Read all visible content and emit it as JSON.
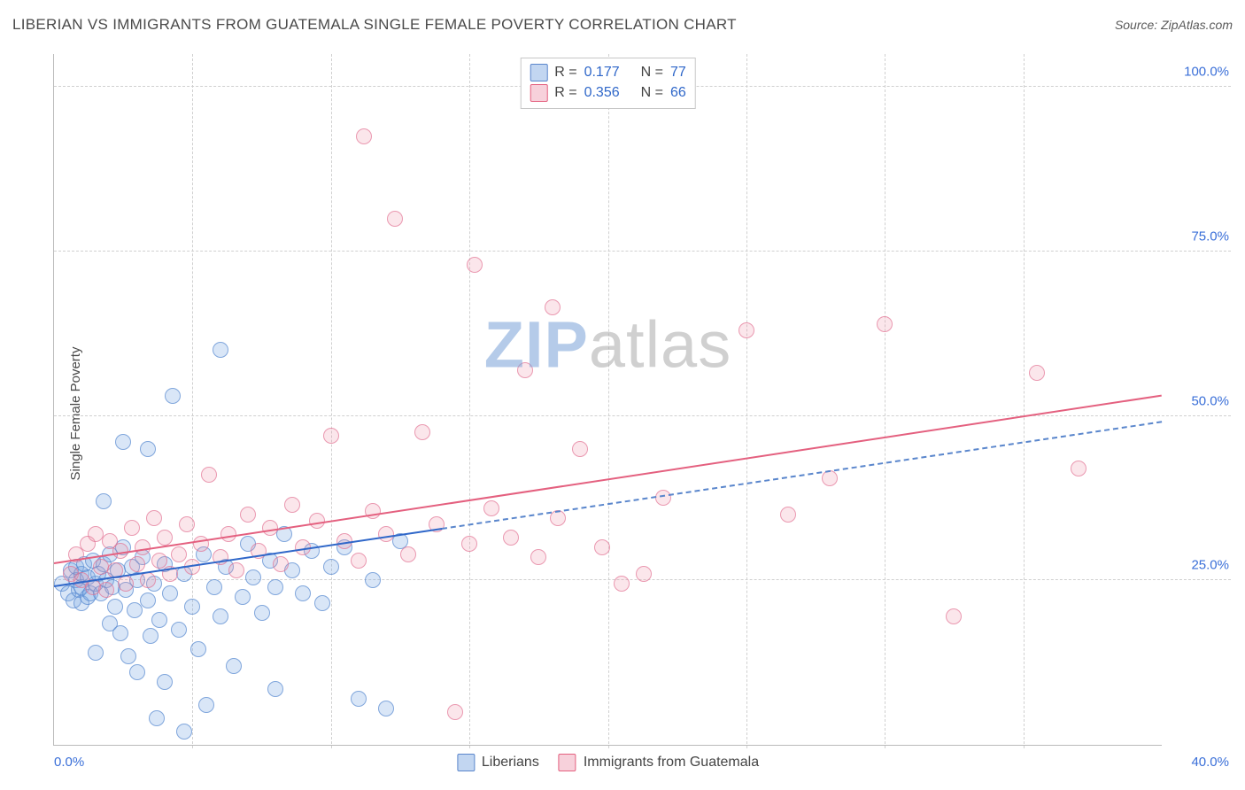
{
  "title": "LIBERIAN VS IMMIGRANTS FROM GUATEMALA SINGLE FEMALE POVERTY CORRELATION CHART",
  "source_label": "Source: ZipAtlas.com",
  "ylabel": "Single Female Poverty",
  "watermark": {
    "bold": "ZIP",
    "rest": "atlas"
  },
  "chart": {
    "type": "scatter",
    "background_color": "#ffffff",
    "grid_color": "#d0d0d0",
    "axis_color": "#bbbbbb",
    "tick_color": "#3a6fd8",
    "tick_fontsize": 15,
    "label_fontsize": 15,
    "xlim": [
      0,
      40
    ],
    "ylim": [
      0,
      105
    ],
    "xticks": [
      0,
      5,
      10,
      15,
      20,
      25,
      30,
      35,
      40
    ],
    "xtick_labels": [
      "0.0%",
      "",
      "",
      "",
      "",
      "",
      "",
      "",
      "40.0%"
    ],
    "yticks": [
      25,
      50,
      75,
      100
    ],
    "ytick_labels": [
      "25.0%",
      "50.0%",
      "75.0%",
      "100.0%"
    ],
    "marker_radius": 9,
    "series": [
      {
        "key": "liberians",
        "label": "Liberians",
        "fill_color": "rgba(120,165,225,0.28)",
        "stroke_color": "rgba(80,130,205,0.65)",
        "reg_color": "#2f67c9",
        "reg_dash_after_x": 14,
        "r": "0.177",
        "n": "77",
        "regression": {
          "y_at_x0": 24.0,
          "y_at_x40": 49.0
        },
        "points": [
          [
            0.3,
            24.5
          ],
          [
            0.5,
            23.0
          ],
          [
            0.6,
            26.5
          ],
          [
            0.7,
            22.0
          ],
          [
            0.8,
            25.0
          ],
          [
            0.8,
            27.0
          ],
          [
            0.9,
            23.5
          ],
          [
            1.0,
            24.0
          ],
          [
            1.0,
            26.0
          ],
          [
            1.0,
            21.5
          ],
          [
            1.1,
            27.5
          ],
          [
            1.2,
            22.5
          ],
          [
            1.2,
            25.5
          ],
          [
            1.3,
            23.0
          ],
          [
            1.4,
            28.0
          ],
          [
            1.5,
            24.5
          ],
          [
            1.5,
            14.0
          ],
          [
            1.6,
            26.0
          ],
          [
            1.7,
            23.0
          ],
          [
            1.8,
            27.5
          ],
          [
            1.8,
            37.0
          ],
          [
            1.9,
            25.0
          ],
          [
            2.0,
            18.5
          ],
          [
            2.0,
            29.0
          ],
          [
            2.1,
            24.0
          ],
          [
            2.2,
            21.0
          ],
          [
            2.3,
            26.5
          ],
          [
            2.4,
            17.0
          ],
          [
            2.5,
            30.0
          ],
          [
            2.5,
            46.0
          ],
          [
            2.6,
            23.5
          ],
          [
            2.7,
            13.5
          ],
          [
            2.8,
            27.0
          ],
          [
            2.9,
            20.5
          ],
          [
            3.0,
            25.0
          ],
          [
            3.0,
            11.0
          ],
          [
            3.2,
            28.5
          ],
          [
            3.4,
            22.0
          ],
          [
            3.4,
            45.0
          ],
          [
            3.5,
            16.5
          ],
          [
            3.6,
            24.5
          ],
          [
            3.7,
            4.0
          ],
          [
            3.8,
            19.0
          ],
          [
            4.0,
            27.5
          ],
          [
            4.0,
            9.5
          ],
          [
            4.2,
            23.0
          ],
          [
            4.3,
            53.0
          ],
          [
            4.5,
            17.5
          ],
          [
            4.7,
            26.0
          ],
          [
            4.7,
            2.0
          ],
          [
            5.0,
            21.0
          ],
          [
            5.2,
            14.5
          ],
          [
            5.4,
            29.0
          ],
          [
            5.5,
            6.0
          ],
          [
            5.8,
            24.0
          ],
          [
            6.0,
            19.5
          ],
          [
            6.0,
            60.0
          ],
          [
            6.2,
            27.0
          ],
          [
            6.5,
            12.0
          ],
          [
            6.8,
            22.5
          ],
          [
            7.0,
            30.5
          ],
          [
            7.2,
            25.5
          ],
          [
            7.5,
            20.0
          ],
          [
            7.8,
            28.0
          ],
          [
            8.0,
            24.0
          ],
          [
            8.0,
            8.5
          ],
          [
            8.3,
            32.0
          ],
          [
            8.6,
            26.5
          ],
          [
            9.0,
            23.0
          ],
          [
            9.3,
            29.5
          ],
          [
            9.7,
            21.5
          ],
          [
            10.0,
            27.0
          ],
          [
            10.5,
            30.0
          ],
          [
            11.0,
            7.0
          ],
          [
            11.5,
            25.0
          ],
          [
            12.0,
            5.5
          ],
          [
            12.5,
            31.0
          ]
        ]
      },
      {
        "key": "guatemala",
        "label": "Immigrants from Guatemala",
        "fill_color": "rgba(235,140,165,0.22)",
        "stroke_color": "rgba(225,110,145,0.65)",
        "reg_color": "#e4607f",
        "reg_dash_after_x": null,
        "r": "0.356",
        "n": "66",
        "regression": {
          "y_at_x0": 27.5,
          "y_at_x40": 53.0
        },
        "points": [
          [
            0.6,
            26.0
          ],
          [
            0.8,
            29.0
          ],
          [
            1.0,
            25.0
          ],
          [
            1.2,
            30.5
          ],
          [
            1.4,
            24.0
          ],
          [
            1.5,
            32.0
          ],
          [
            1.7,
            27.0
          ],
          [
            1.9,
            23.5
          ],
          [
            2.0,
            31.0
          ],
          [
            2.2,
            26.5
          ],
          [
            2.4,
            29.5
          ],
          [
            2.6,
            24.5
          ],
          [
            2.8,
            33.0
          ],
          [
            3.0,
            27.5
          ],
          [
            3.2,
            30.0
          ],
          [
            3.4,
            25.0
          ],
          [
            3.6,
            34.5
          ],
          [
            3.8,
            28.0
          ],
          [
            4.0,
            31.5
          ],
          [
            4.2,
            26.0
          ],
          [
            4.5,
            29.0
          ],
          [
            4.8,
            33.5
          ],
          [
            5.0,
            27.0
          ],
          [
            5.3,
            30.5
          ],
          [
            5.6,
            41.0
          ],
          [
            6.0,
            28.5
          ],
          [
            6.3,
            32.0
          ],
          [
            6.6,
            26.5
          ],
          [
            7.0,
            35.0
          ],
          [
            7.4,
            29.5
          ],
          [
            7.8,
            33.0
          ],
          [
            8.2,
            27.5
          ],
          [
            8.6,
            36.5
          ],
          [
            9.0,
            30.0
          ],
          [
            9.5,
            34.0
          ],
          [
            10.0,
            47.0
          ],
          [
            10.5,
            31.0
          ],
          [
            11.0,
            28.0
          ],
          [
            11.2,
            92.5
          ],
          [
            11.5,
            35.5
          ],
          [
            12.0,
            32.0
          ],
          [
            12.3,
            80.0
          ],
          [
            12.8,
            29.0
          ],
          [
            13.3,
            47.5
          ],
          [
            13.8,
            33.5
          ],
          [
            14.5,
            5.0
          ],
          [
            15.0,
            30.5
          ],
          [
            15.2,
            73.0
          ],
          [
            15.8,
            36.0
          ],
          [
            16.5,
            31.5
          ],
          [
            17.0,
            57.0
          ],
          [
            17.5,
            28.5
          ],
          [
            18.0,
            66.5
          ],
          [
            18.2,
            34.5
          ],
          [
            19.0,
            45.0
          ],
          [
            19.8,
            30.0
          ],
          [
            20.5,
            24.5
          ],
          [
            21.3,
            26.0
          ],
          [
            22.0,
            37.5
          ],
          [
            25.0,
            63.0
          ],
          [
            26.5,
            35.0
          ],
          [
            28.0,
            40.5
          ],
          [
            30.0,
            64.0
          ],
          [
            32.5,
            19.5
          ],
          [
            35.5,
            56.5
          ],
          [
            37.0,
            42.0
          ]
        ]
      }
    ]
  },
  "topbox": {
    "rows": [
      {
        "swatch": "blue",
        "r_label": "R =",
        "r_val": "0.177",
        "n_label": "N =",
        "n_val": "77"
      },
      {
        "swatch": "pink",
        "r_label": "R =",
        "r_val": "0.356",
        "n_label": "N =",
        "n_val": "66"
      }
    ]
  },
  "bottom_legend": [
    {
      "swatch": "blue",
      "label": "Liberians"
    },
    {
      "swatch": "pink",
      "label": "Immigrants from Guatemala"
    }
  ]
}
